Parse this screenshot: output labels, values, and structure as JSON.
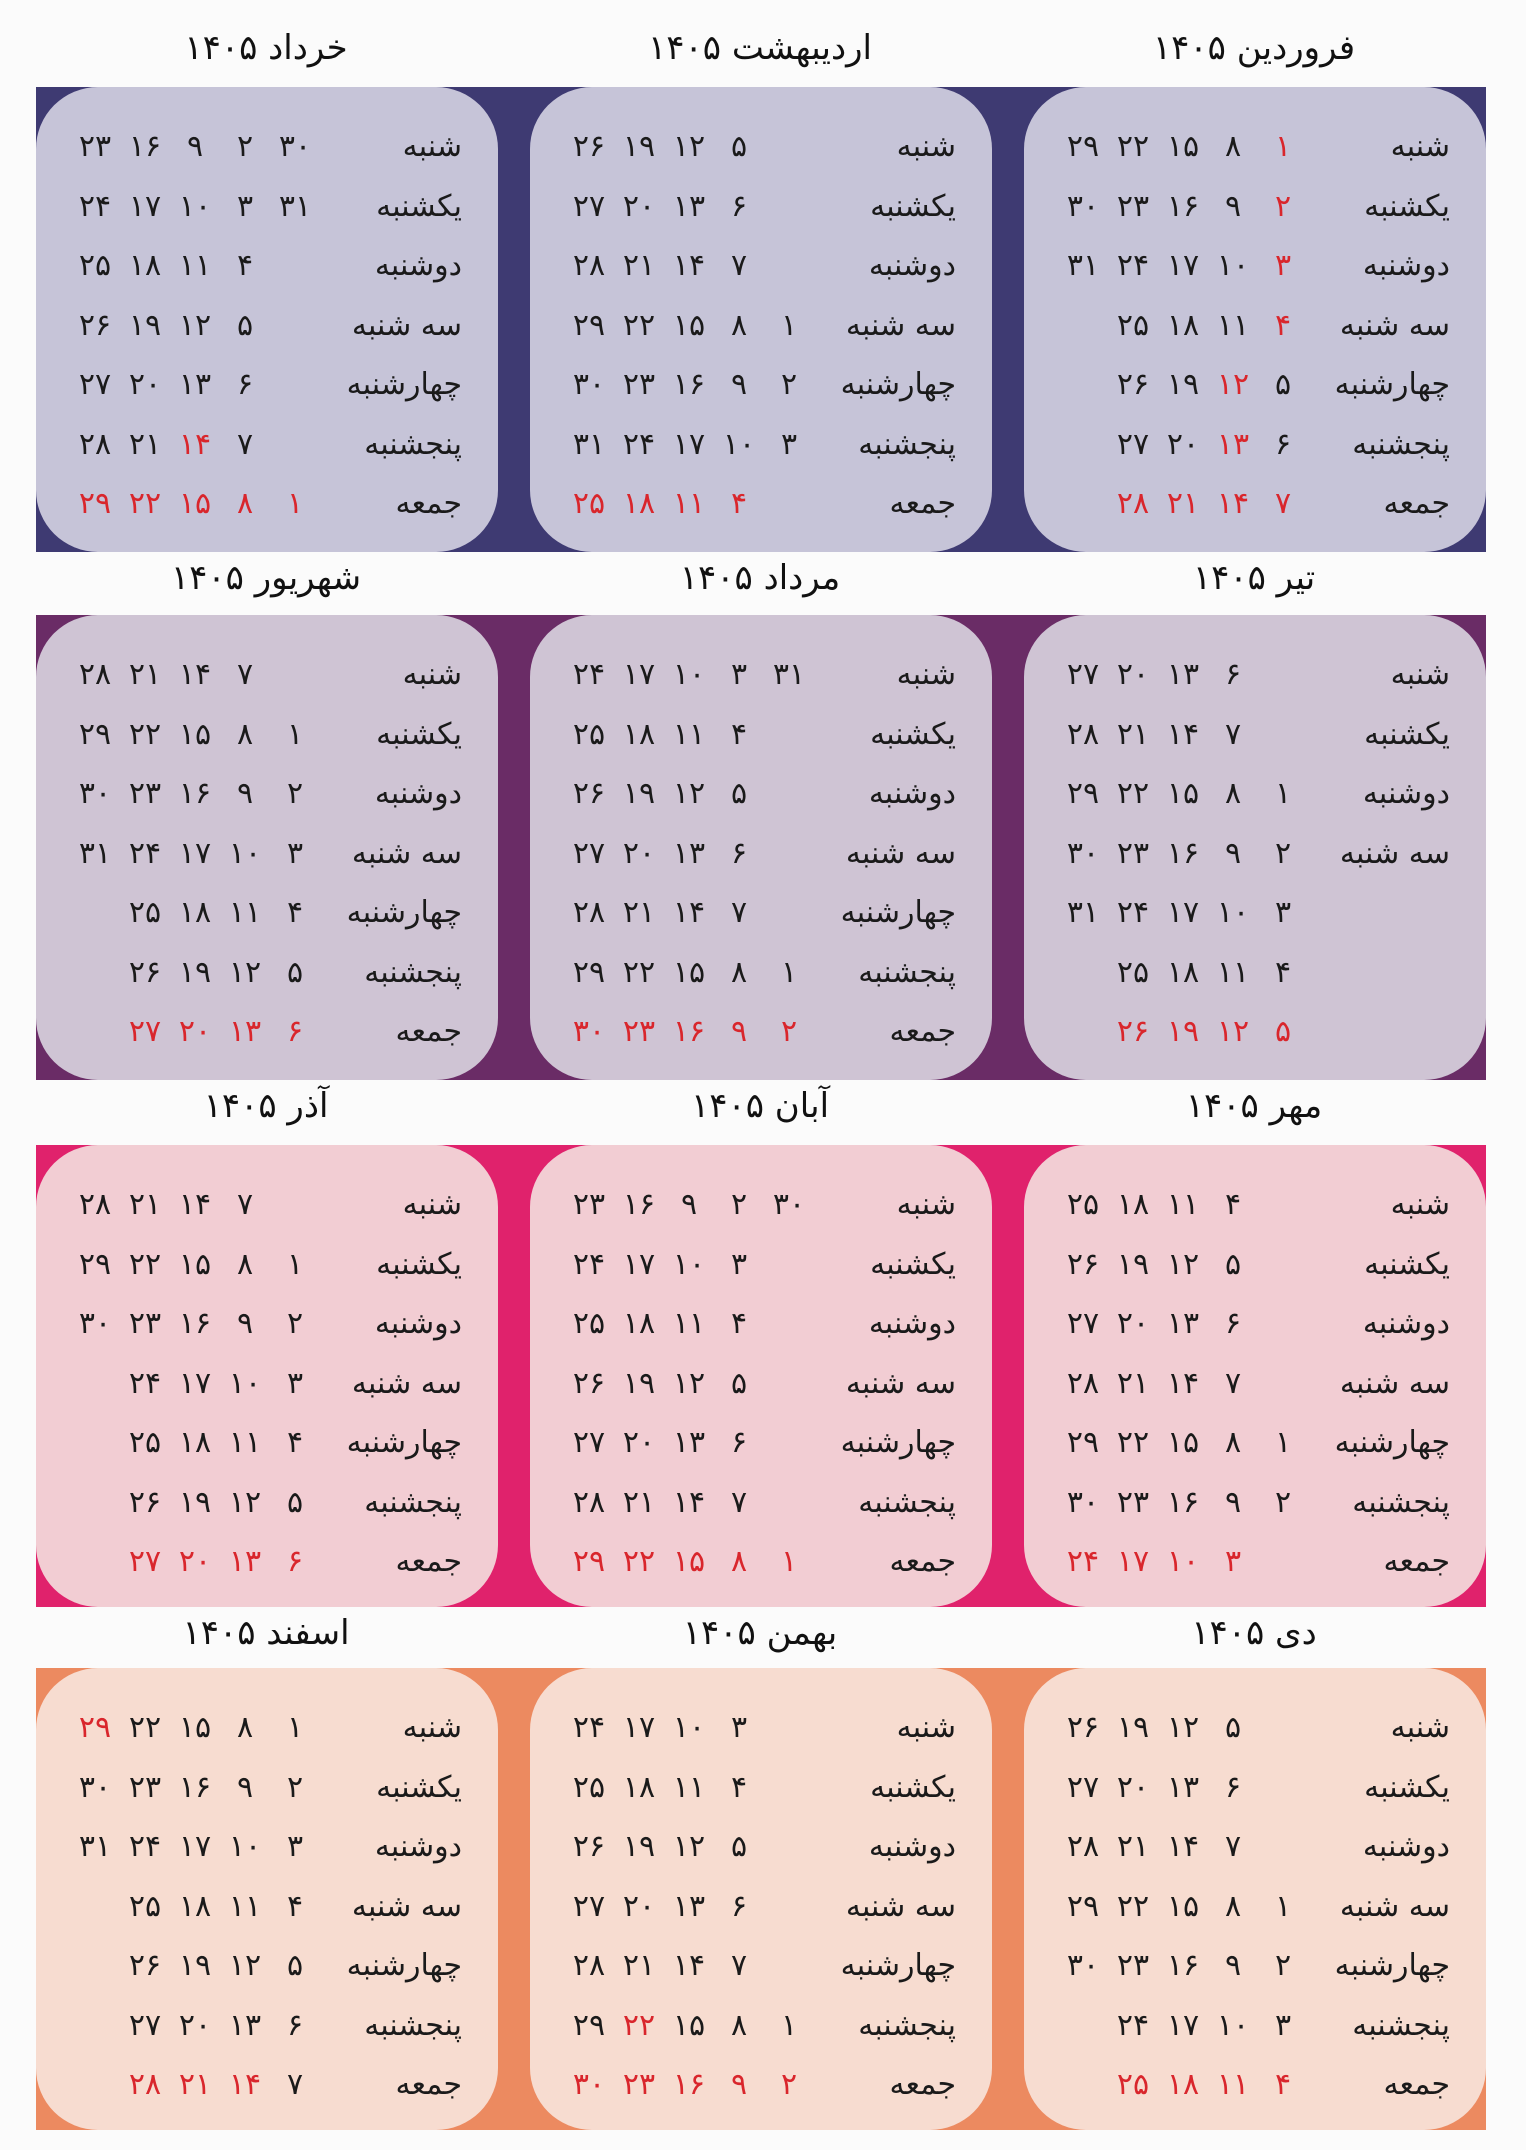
{
  "year": "۱۴۰۵",
  "weekdays": [
    "شنبه",
    "یکشنبه",
    "دوشنبه",
    "سه شنبه",
    "چهارشنبه",
    "پنجشنبه",
    "جمعه"
  ],
  "colors": {
    "row1_band": "#3e3a72",
    "row1_card": "#c6c4d8",
    "row2_band": "#6a2c66",
    "row2_card": "#cfc4d4",
    "row3_band": "#e0226c",
    "row3_card": "#f2cdd3",
    "row4_band": "#ec8a60",
    "row4_card": "#f7dcd0",
    "holiday": "#d9262c"
  },
  "months": [
    {
      "name": "فروردین ۱۴۰۵",
      "labels": [
        "شنبه",
        "یکشنبه",
        "دوشنبه",
        "سه شنبه",
        "چهارشنبه",
        "پنجشنبه",
        "جمعه"
      ],
      "rows": [
        [
          "۱",
          "۸",
          "۱۵",
          "۲۲",
          "۲۹"
        ],
        [
          "۲",
          "۹",
          "۱۶",
          "۲۳",
          "۳۰"
        ],
        [
          "۳",
          "۱۰",
          "۱۷",
          "۲۴",
          "۳۱"
        ],
        [
          "۴",
          "۱۱",
          "۱۸",
          "۲۵",
          ""
        ],
        [
          "۵",
          "۱۲",
          "۱۹",
          "۲۶",
          ""
        ],
        [
          "۶",
          "۱۳",
          "۲۰",
          "۲۷",
          ""
        ],
        [
          "۷",
          "۱۴",
          "۲۱",
          "۲۸",
          ""
        ]
      ],
      "holidays": [
        [
          0,
          0
        ],
        [
          1,
          0
        ],
        [
          2,
          0
        ],
        [
          3,
          0
        ],
        [
          4,
          1
        ],
        [
          5,
          1
        ],
        [
          6,
          0
        ],
        [
          6,
          1
        ],
        [
          6,
          2
        ],
        [
          6,
          3
        ]
      ]
    },
    {
      "name": "اردیبهشت ۱۴۰۵",
      "labels": [
        "شنبه",
        "یکشنبه",
        "دوشنبه",
        "سه شنبه",
        "چهارشنبه",
        "پنجشنبه",
        "جمعه"
      ],
      "rows": [
        [
          "",
          "۵",
          "۱۲",
          "۱۹",
          "۲۶"
        ],
        [
          "",
          "۶",
          "۱۳",
          "۲۰",
          "۲۷"
        ],
        [
          "",
          "۷",
          "۱۴",
          "۲۱",
          "۲۸"
        ],
        [
          "۱",
          "۸",
          "۱۵",
          "۲۲",
          "۲۹"
        ],
        [
          "۲",
          "۹",
          "۱۶",
          "۲۳",
          "۳۰"
        ],
        [
          "۳",
          "۱۰",
          "۱۷",
          "۲۴",
          "۳۱"
        ],
        [
          "",
          "۴",
          "۱۱",
          "۱۸",
          "۲۵"
        ]
      ],
      "holidays": [
        [
          6,
          1
        ],
        [
          6,
          2
        ],
        [
          6,
          3
        ],
        [
          6,
          4
        ]
      ]
    },
    {
      "name": "خرداد ۱۴۰۵",
      "labels": [
        "شنبه",
        "یکشنبه",
        "دوشنبه",
        "سه شنبه",
        "چهارشنبه",
        "پنجشنبه",
        "جمعه"
      ],
      "rows": [
        [
          "۳۰",
          "۲",
          "۹",
          "۱۶",
          "۲۳"
        ],
        [
          "۳۱",
          "۳",
          "۱۰",
          "۱۷",
          "۲۴"
        ],
        [
          "",
          "۴",
          "۱۱",
          "۱۸",
          "۲۵"
        ],
        [
          "",
          "۵",
          "۱۲",
          "۱۹",
          "۲۶"
        ],
        [
          "",
          "۶",
          "۱۳",
          "۲۰",
          "۲۷"
        ],
        [
          "",
          "۷",
          "۱۴",
          "۲۱",
          "۲۸"
        ],
        [
          "۱",
          "۸",
          "۱۵",
          "۲۲",
          "۲۹"
        ]
      ],
      "holidays": [
        [
          5,
          2
        ],
        [
          6,
          0
        ],
        [
          6,
          1
        ],
        [
          6,
          2
        ],
        [
          6,
          3
        ],
        [
          6,
          4
        ]
      ]
    },
    {
      "name": "تیر ۱۴۰۵",
      "labels": [
        "شنبه",
        "یکشنبه",
        "دوشنبه",
        "سه شنبه",
        "",
        "",
        ""
      ],
      "rows": [
        [
          "",
          "۶",
          "۱۳",
          "۲۰",
          "۲۷"
        ],
        [
          "",
          "۷",
          "۱۴",
          "۲۱",
          "۲۸"
        ],
        [
          "۱",
          "۸",
          "۱۵",
          "۲۲",
          "۲۹"
        ],
        [
          "۲",
          "۹",
          "۱۶",
          "۲۳",
          "۳۰"
        ],
        [
          "۳",
          "۱۰",
          "۱۷",
          "۲۴",
          "۳۱"
        ],
        [
          "۴",
          "۱۱",
          "۱۸",
          "۲۵",
          ""
        ],
        [
          "۵",
          "۱۲",
          "۱۹",
          "۲۶",
          ""
        ]
      ],
      "holidays": [
        [
          6,
          0
        ],
        [
          6,
          1
        ],
        [
          6,
          2
        ],
        [
          6,
          3
        ]
      ]
    },
    {
      "name": "مرداد ۱۴۰۵",
      "labels": [
        "شنبه",
        "یکشنبه",
        "دوشنبه",
        "سه شنبه",
        "چهارشنبه",
        "پنجشنبه",
        "جمعه"
      ],
      "rows": [
        [
          "۳۱",
          "۳",
          "۱۰",
          "۱۷",
          "۲۴"
        ],
        [
          "",
          "۴",
          "۱۱",
          "۱۸",
          "۲۵"
        ],
        [
          "",
          "۵",
          "۱۲",
          "۱۹",
          "۲۶"
        ],
        [
          "",
          "۶",
          "۱۳",
          "۲۰",
          "۲۷"
        ],
        [
          "",
          "۷",
          "۱۴",
          "۲۱",
          "۲۸"
        ],
        [
          "۱",
          "۸",
          "۱۵",
          "۲۲",
          "۲۹"
        ],
        [
          "۲",
          "۹",
          "۱۶",
          "۲۳",
          "۳۰"
        ]
      ],
      "holidays": [
        [
          6,
          0
        ],
        [
          6,
          1
        ],
        [
          6,
          2
        ],
        [
          6,
          3
        ],
        [
          6,
          4
        ]
      ]
    },
    {
      "name": "شهریور ۱۴۰۵",
      "labels": [
        "شنبه",
        "یکشنبه",
        "دوشنبه",
        "سه شنبه",
        "چهارشنبه",
        "پنجشنبه",
        "جمعه"
      ],
      "rows": [
        [
          "",
          "۷",
          "۱۴",
          "۲۱",
          "۲۸"
        ],
        [
          "۱",
          "۸",
          "۱۵",
          "۲۲",
          "۲۹"
        ],
        [
          "۲",
          "۹",
          "۱۶",
          "۲۳",
          "۳۰"
        ],
        [
          "۳",
          "۱۰",
          "۱۷",
          "۲۴",
          "۳۱"
        ],
        [
          "۴",
          "۱۱",
          "۱۸",
          "۲۵",
          ""
        ],
        [
          "۵",
          "۱۲",
          "۱۹",
          "۲۶",
          ""
        ],
        [
          "۶",
          "۱۳",
          "۲۰",
          "۲۷",
          ""
        ]
      ],
      "holidays": [
        [
          6,
          0
        ],
        [
          6,
          1
        ],
        [
          6,
          2
        ],
        [
          6,
          3
        ]
      ]
    },
    {
      "name": "مهر ۱۴۰۵",
      "labels": [
        "شنبه",
        "یکشنبه",
        "دوشنبه",
        "سه شنبه",
        "چهارشنبه",
        "پنجشنبه",
        "جمعه"
      ],
      "rows": [
        [
          "",
          "۴",
          "۱۱",
          "۱۸",
          "۲۵"
        ],
        [
          "",
          "۵",
          "۱۲",
          "۱۹",
          "۲۶"
        ],
        [
          "",
          "۶",
          "۱۳",
          "۲۰",
          "۲۷"
        ],
        [
          "",
          "۷",
          "۱۴",
          "۲۱",
          "۲۸"
        ],
        [
          "۱",
          "۸",
          "۱۵",
          "۲۲",
          "۲۹"
        ],
        [
          "۲",
          "۹",
          "۱۶",
          "۲۳",
          "۳۰"
        ],
        [
          "",
          "۳",
          "۱۰",
          "۱۷",
          "۲۴"
        ]
      ],
      "holidays": [
        [
          6,
          1
        ],
        [
          6,
          2
        ],
        [
          6,
          3
        ],
        [
          6,
          4
        ]
      ]
    },
    {
      "name": "آبان ۱۴۰۵",
      "labels": [
        "شنبه",
        "یکشنبه",
        "دوشنبه",
        "سه شنبه",
        "چهارشنبه",
        "پنجشنبه",
        "جمعه"
      ],
      "rows": [
        [
          "۳۰",
          "۲",
          "۹",
          "۱۶",
          "۲۳"
        ],
        [
          "",
          "۳",
          "۱۰",
          "۱۷",
          "۲۴"
        ],
        [
          "",
          "۴",
          "۱۱",
          "۱۸",
          "۲۵"
        ],
        [
          "",
          "۵",
          "۱۲",
          "۱۹",
          "۲۶"
        ],
        [
          "",
          "۶",
          "۱۳",
          "۲۰",
          "۲۷"
        ],
        [
          "",
          "۷",
          "۱۴",
          "۲۱",
          "۲۸"
        ],
        [
          "۱",
          "۸",
          "۱۵",
          "۲۲",
          "۲۹"
        ]
      ],
      "holidays": [
        [
          6,
          0
        ],
        [
          6,
          1
        ],
        [
          6,
          2
        ],
        [
          6,
          3
        ],
        [
          6,
          4
        ]
      ]
    },
    {
      "name": "آذر ۱۴۰۵",
      "labels": [
        "شنبه",
        "یکشنبه",
        "دوشنبه",
        "سه شنبه",
        "چهارشنبه",
        "پنجشنبه",
        "جمعه"
      ],
      "rows": [
        [
          "",
          "۷",
          "۱۴",
          "۲۱",
          "۲۸"
        ],
        [
          "۱",
          "۸",
          "۱۵",
          "۲۲",
          "۲۹"
        ],
        [
          "۲",
          "۹",
          "۱۶",
          "۲۳",
          "۳۰"
        ],
        [
          "۳",
          "۱۰",
          "۱۷",
          "۲۴",
          ""
        ],
        [
          "۴",
          "۱۱",
          "۱۸",
          "۲۵",
          ""
        ],
        [
          "۵",
          "۱۲",
          "۱۹",
          "۲۶",
          ""
        ],
        [
          "۶",
          "۱۳",
          "۲۰",
          "۲۷",
          ""
        ]
      ],
      "holidays": [
        [
          6,
          0
        ],
        [
          6,
          1
        ],
        [
          6,
          2
        ],
        [
          6,
          3
        ]
      ]
    },
    {
      "name": "دی ۱۴۰۵",
      "labels": [
        "شنبه",
        "یکشنبه",
        "دوشنبه",
        "سه شنبه",
        "چهارشنبه",
        "پنجشنبه",
        "جمعه"
      ],
      "rows": [
        [
          "",
          "۵",
          "۱۲",
          "۱۹",
          "۲۶"
        ],
        [
          "",
          "۶",
          "۱۳",
          "۲۰",
          "۲۷"
        ],
        [
          "",
          "۷",
          "۱۴",
          "۲۱",
          "۲۸"
        ],
        [
          "۱",
          "۸",
          "۱۵",
          "۲۲",
          "۲۹"
        ],
        [
          "۲",
          "۹",
          "۱۶",
          "۲۳",
          "۳۰"
        ],
        [
          "۳",
          "۱۰",
          "۱۷",
          "۲۴",
          ""
        ],
        [
          "۴",
          "۱۱",
          "۱۸",
          "۲۵",
          ""
        ]
      ],
      "holidays": [
        [
          6,
          0
        ],
        [
          6,
          1
        ],
        [
          6,
          2
        ],
        [
          6,
          3
        ]
      ]
    },
    {
      "name": "بهمن ۱۴۰۵",
      "labels": [
        "شنبه",
        "یکشنبه",
        "دوشنبه",
        "سه شنبه",
        "چهارشنبه",
        "پنجشنبه",
        "جمعه"
      ],
      "rows": [
        [
          "",
          "۳",
          "۱۰",
          "۱۷",
          "۲۴"
        ],
        [
          "",
          "۴",
          "۱۱",
          "۱۸",
          "۲۵"
        ],
        [
          "",
          "۵",
          "۱۲",
          "۱۹",
          "۲۶"
        ],
        [
          "",
          "۶",
          "۱۳",
          "۲۰",
          "۲۷"
        ],
        [
          "",
          "۷",
          "۱۴",
          "۲۱",
          "۲۸"
        ],
        [
          "۱",
          "۸",
          "۱۵",
          "۲۲",
          "۲۹"
        ],
        [
          "۲",
          "۹",
          "۱۶",
          "۲۳",
          "۳۰"
        ]
      ],
      "holidays": [
        [
          5,
          3
        ],
        [
          6,
          0
        ],
        [
          6,
          1
        ],
        [
          6,
          2
        ],
        [
          6,
          3
        ],
        [
          6,
          4
        ]
      ]
    },
    {
      "name": "اسفند ۱۴۰۵",
      "labels": [
        "شنبه",
        "یکشنبه",
        "دوشنبه",
        "سه شنبه",
        "چهارشنبه",
        "پنجشنبه",
        "جمعه"
      ],
      "rows": [
        [
          "۱",
          "۸",
          "۱۵",
          "۲۲",
          "۲۹"
        ],
        [
          "۲",
          "۹",
          "۱۶",
          "۲۳",
          "۳۰"
        ],
        [
          "۳",
          "۱۰",
          "۱۷",
          "۲۴",
          "۳۱"
        ],
        [
          "۴",
          "۱۱",
          "۱۸",
          "۲۵",
          ""
        ],
        [
          "۵",
          "۱۲",
          "۱۹",
          "۲۶",
          ""
        ],
        [
          "۶",
          "۱۳",
          "۲۰",
          "۲۷",
          ""
        ],
        [
          "۷",
          "۱۴",
          "۲۱",
          "۲۸",
          ""
        ]
      ],
      "holidays": [
        [
          0,
          4
        ],
        [
          6,
          1
        ],
        [
          6,
          2
        ],
        [
          6,
          3
        ]
      ]
    }
  ]
}
